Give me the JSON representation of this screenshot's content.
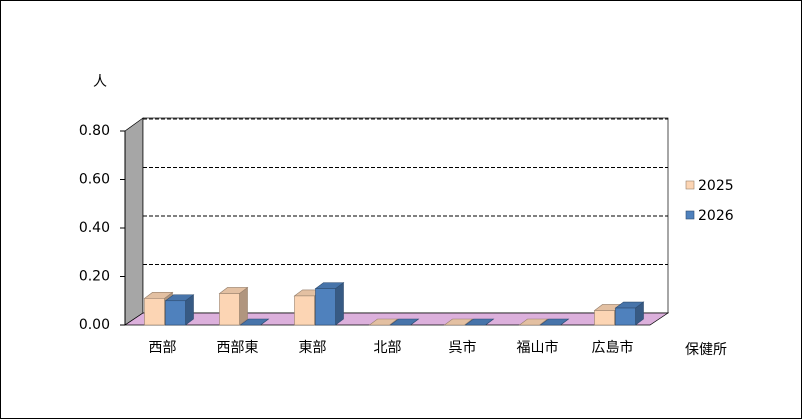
{
  "chart_data": {
    "type": "bar3d",
    "y_label": "人",
    "x_label": "保健所",
    "categories": [
      "西部",
      "西部東",
      "東部",
      "北部",
      "呉市",
      "福山市",
      "広島市"
    ],
    "series": [
      {
        "name": "2025",
        "color": "#fcd5b4",
        "values": [
          0.11,
          0.13,
          0.12,
          0,
          0,
          0,
          0.06
        ]
      },
      {
        "name": "2026",
        "color": "#4f81bd",
        "values": [
          0.1,
          0,
          0.15,
          0,
          0,
          0,
          0.07
        ]
      }
    ],
    "ylim": [
      0,
      0.8
    ],
    "yticks": [
      {
        "value": 0,
        "label": "0.00"
      },
      {
        "value": 0.2,
        "label": "0.20"
      },
      {
        "value": 0.4,
        "label": "0.40"
      },
      {
        "value": 0.6,
        "label": "0.60"
      },
      {
        "value": 0.8,
        "label": "0.80"
      }
    ],
    "grid": true,
    "legend": "right"
  }
}
